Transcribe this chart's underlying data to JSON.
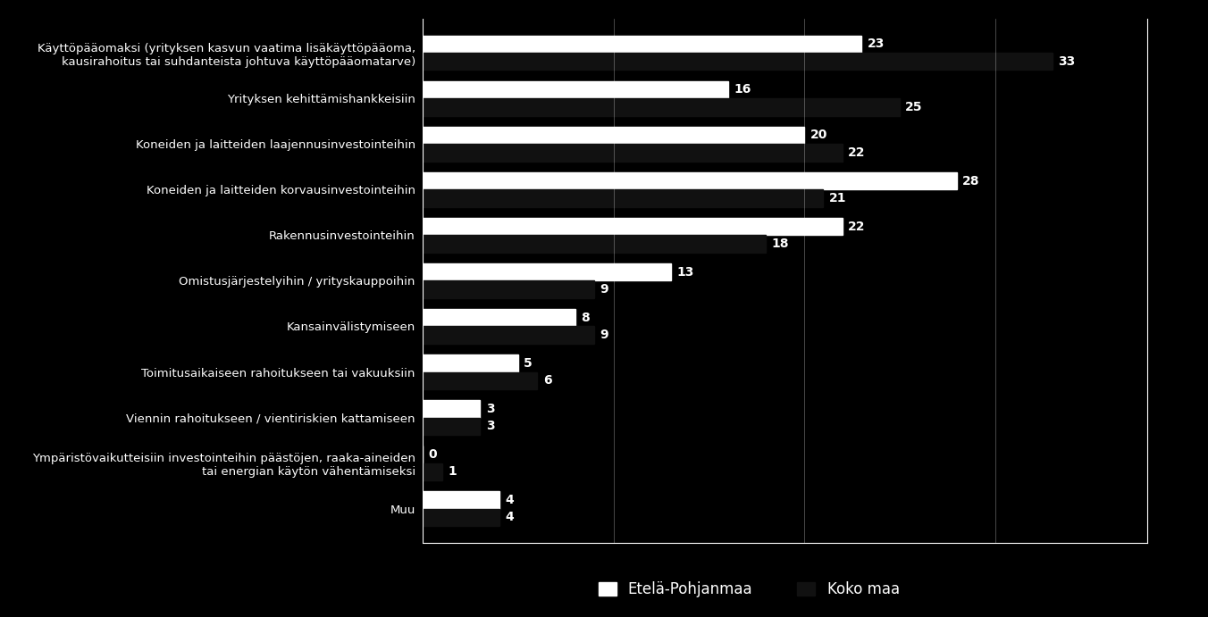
{
  "categories": [
    "Käyttöpääomaksi (yrityksen kasvun vaatima lisäkäyttöpääoma,\nkausirahoitus tai suhdanteista johtuva käyttöpääomatarve)",
    "Yrityksen kehittämishankkeisiin",
    "Koneiden ja laitteiden laajennusinvestointeihin",
    "Koneiden ja laitteiden korvausinvestointeihin",
    "Rakennusinvestointeihin",
    "Omistusjärjestelyihin / yrityskauppoihin",
    "Kansainvälistymiseen",
    "Toimitusaikaiseen rahoitukseen tai vakuuksiin",
    "Viennin rahoitukseen / vientiriskien kattamiseen",
    "Ympäristövaikutteisiin investointeihin päästöjen, raaka-aineiden\ntai energian käytön vähentämiseksi",
    "Muu"
  ],
  "etela_pohjanmaa": [
    23,
    16,
    20,
    28,
    22,
    13,
    8,
    5,
    3,
    0,
    4
  ],
  "koko_maa": [
    33,
    25,
    22,
    21,
    18,
    9,
    9,
    6,
    3,
    1,
    4
  ],
  "color_etela": "#ffffff",
  "color_koko": "#111111",
  "background_color": "#000000",
  "text_color": "#ffffff",
  "bar_height": 0.38,
  "legend_etela": "Etelä-Pohjanmaa",
  "legend_koko": "Koko maa",
  "xlim": [
    0,
    38
  ]
}
